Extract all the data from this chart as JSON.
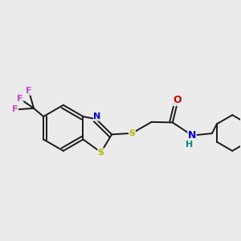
{
  "bg_color": "#ebebeb",
  "bond_color": "#1a1a1a",
  "s_color": "#b8b800",
  "n_color": "#0000cc",
  "o_color": "#cc0000",
  "h_color": "#008888",
  "f_color": "#cc44cc",
  "lw": 1.4,
  "figsize": [
    3.0,
    3.0
  ],
  "dpi": 100,
  "xlim": [
    0,
    10
  ],
  "ylim": [
    0,
    10
  ]
}
